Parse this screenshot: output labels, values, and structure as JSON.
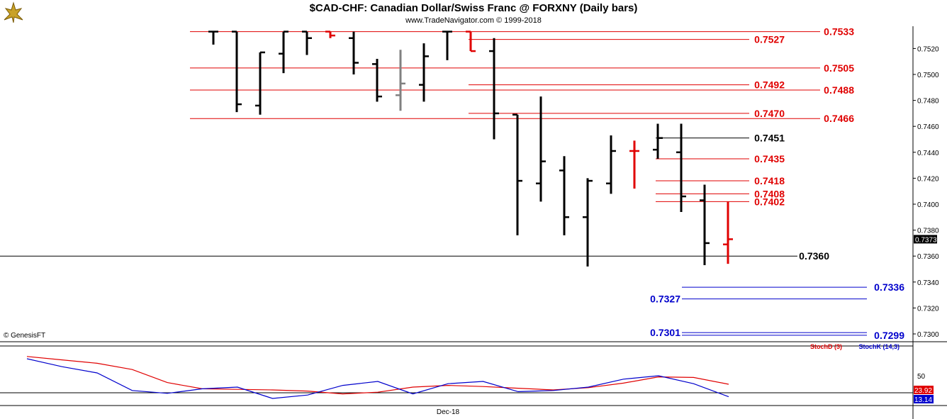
{
  "header": {
    "title": "$CAD-CHF:  Canadian Dollar/Swiss Franc @ FORXNY  (Daily bars)",
    "subtitle": "www.TradeNavigator.com © 1999-2018",
    "credit": "© GenesisFT"
  },
  "colors": {
    "bar_up": "#000000",
    "bar_red": "#e00000",
    "bar_gray": "#808080",
    "level_red": "#e00000",
    "level_black": "#000000",
    "level_blue": "#0000cc",
    "stochd": "#e00000",
    "stochk": "#0000cc"
  },
  "chart_data": [
    {
      "type": "ohlc",
      "title": "$CAD-CHF:  Canadian Dollar/Swiss Franc @ FORXNY  (Daily bars)",
      "ylim": [
        0.729,
        0.7533
      ],
      "y_ticks": [
        "0.7300",
        "0.7320",
        "0.7340",
        "0.7360",
        "0.7380",
        "0.7400",
        "0.7420",
        "0.7440",
        "0.7460",
        "0.7480",
        "0.7500",
        "0.7520"
      ],
      "last_price": "0.7373",
      "bars": [
        {
          "o": 0.7533,
          "h": 0.7533,
          "l": 0.7523,
          "c": 0.7533,
          "color": "black"
        },
        {
          "o": 0.7533,
          "h": 0.7533,
          "l": 0.7471,
          "c": 0.7477,
          "color": "black"
        },
        {
          "o": 0.7476,
          "h": 0.7517,
          "l": 0.7469,
          "c": 0.7517,
          "color": "black"
        },
        {
          "o": 0.7516,
          "h": 0.7533,
          "l": 0.7501,
          "c": 0.7533,
          "color": "black"
        },
        {
          "o": 0.7533,
          "h": 0.7533,
          "l": 0.7515,
          "c": 0.7528,
          "color": "black"
        },
        {
          "o": 0.7533,
          "h": 0.7533,
          "l": 0.7528,
          "c": 0.753,
          "color": "red"
        },
        {
          "o": 0.7528,
          "h": 0.7533,
          "l": 0.75,
          "c": 0.7509,
          "color": "black"
        },
        {
          "o": 0.7508,
          "h": 0.7512,
          "l": 0.7479,
          "c": 0.7483,
          "color": "black"
        },
        {
          "o": 0.7484,
          "h": 0.7519,
          "l": 0.7472,
          "c": 0.7493,
          "color": "gray"
        },
        {
          "o": 0.7492,
          "h": 0.7524,
          "l": 0.7479,
          "c": 0.7514,
          "color": "black"
        },
        {
          "o": 0.7533,
          "h": 0.7533,
          "l": 0.7511,
          "c": 0.7533,
          "color": "black"
        },
        {
          "o": 0.7533,
          "h": 0.7533,
          "l": 0.7518,
          "c": 0.7518,
          "color": "red"
        },
        {
          "o": 0.7518,
          "h": 0.7528,
          "l": 0.745,
          "c": 0.747,
          "color": "black"
        },
        {
          "o": 0.7469,
          "h": 0.7469,
          "l": 0.7376,
          "c": 0.7418,
          "color": "black"
        },
        {
          "o": 0.7416,
          "h": 0.7483,
          "l": 0.7402,
          "c": 0.7433,
          "color": "black"
        },
        {
          "o": 0.7426,
          "h": 0.7437,
          "l": 0.7376,
          "c": 0.739,
          "color": "black"
        },
        {
          "o": 0.739,
          "h": 0.742,
          "l": 0.7352,
          "c": 0.7418,
          "color": "black"
        },
        {
          "o": 0.7416,
          "h": 0.7453,
          "l": 0.7408,
          "c": 0.7441,
          "color": "black"
        },
        {
          "o": 0.7441,
          "h": 0.7449,
          "l": 0.7412,
          "c": 0.7441,
          "color": "red"
        },
        {
          "o": 0.7442,
          "h": 0.7462,
          "l": 0.7435,
          "c": 0.7451,
          "color": "black"
        },
        {
          "o": 0.744,
          "h": 0.7462,
          "l": 0.7394,
          "c": 0.7406,
          "color": "black"
        },
        {
          "o": 0.7403,
          "h": 0.7415,
          "l": 0.7353,
          "c": 0.737,
          "color": "black"
        },
        {
          "o": 0.7369,
          "h": 0.7402,
          "l": 0.7354,
          "c": 0.7373,
          "color": "red"
        }
      ],
      "levels": [
        {
          "value": 0.7533,
          "label": "0.7533",
          "color": "red",
          "from_bar": 0
        },
        {
          "value": 0.7527,
          "label": "0.7527",
          "color": "red",
          "from_bar": 11
        },
        {
          "value": 0.7505,
          "label": "0.7505",
          "color": "red",
          "from_bar": 0
        },
        {
          "value": 0.7492,
          "label": "0.7492",
          "color": "red",
          "from_bar": 11
        },
        {
          "value": 0.7488,
          "label": "0.7488",
          "color": "red",
          "from_bar": 0
        },
        {
          "value": 0.747,
          "label": "0.7470",
          "color": "red",
          "from_bar": 11
        },
        {
          "value": 0.7466,
          "label": "0.7466",
          "color": "red",
          "from_bar": 0
        },
        {
          "value": 0.7451,
          "label": "0.7451",
          "color": "black",
          "from_bar": 19
        },
        {
          "value": 0.7435,
          "label": "0.7435",
          "color": "red",
          "from_bar": 19
        },
        {
          "value": 0.7418,
          "label": "0.7418",
          "color": "red",
          "from_bar": 19
        },
        {
          "value": 0.7408,
          "label": "0.7408",
          "color": "red",
          "from_bar": 19
        },
        {
          "value": 0.7402,
          "label": "0.7402",
          "color": "red",
          "from_bar": 19
        },
        {
          "value": 0.736,
          "label": "0.7360",
          "color": "black",
          "from_bar": -10
        },
        {
          "value": 0.7336,
          "label": "0.7336",
          "color": "blue",
          "from_bar": 20
        },
        {
          "value": 0.7327,
          "label": "0.7327",
          "color": "blue",
          "from_bar": 20
        },
        {
          "value": 0.7301,
          "label": "0.7301",
          "color": "blue",
          "from_bar": 20
        },
        {
          "value": 0.7299,
          "label": "0.7299",
          "color": "blue",
          "from_bar": 20
        }
      ]
    },
    {
      "type": "line",
      "ylim": [
        0,
        100
      ],
      "y_ticks": [
        "50"
      ],
      "x_label": "Dec-18",
      "series": [
        {
          "name": "StochD (3)",
          "color": "red",
          "values": [
            84,
            78,
            72,
            61,
            38,
            27,
            26,
            25,
            23,
            18,
            21,
            30,
            33,
            31,
            28,
            25,
            29,
            37,
            48,
            47,
            35
          ]
        },
        {
          "name": "StochK (14,3)",
          "color": "blue",
          "values": [
            80,
            66,
            55,
            24,
            19,
            27,
            30,
            10,
            16,
            33,
            40,
            18,
            36,
            40,
            22,
            24,
            30,
            44,
            50,
            36,
            13
          ]
        }
      ],
      "value_labels": [
        "23.92",
        "13.14"
      ]
    }
  ]
}
